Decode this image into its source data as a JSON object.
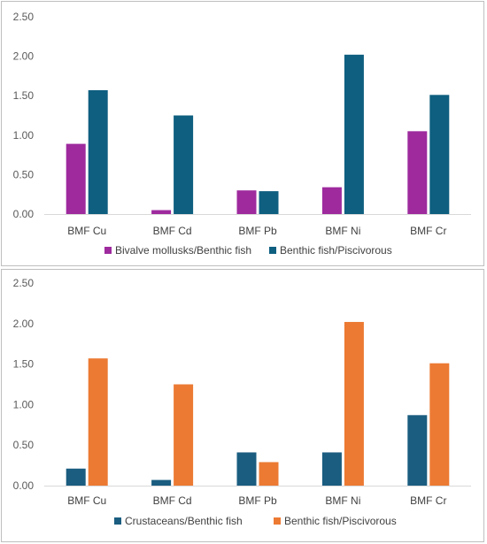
{
  "chart_data": [
    {
      "type": "bar",
      "categories": [
        "BMF Cu",
        "BMF Cd",
        "BMF Pb",
        "BMF Ni",
        "BMF Cr"
      ],
      "series": [
        {
          "name": "Bivalve mollusks/Benthic fish",
          "color": "#9e2a9e",
          "values": [
            0.89,
            0.05,
            0.3,
            0.34,
            1.05
          ]
        },
        {
          "name": "Benthic fish/Piscivorous",
          "color": "#0e5f80",
          "values": [
            1.57,
            1.25,
            0.29,
            2.02,
            1.51
          ]
        }
      ],
      "yticks": [
        "0.00",
        "0.50",
        "1.00",
        "1.50",
        "2.00",
        "2.50"
      ],
      "ylim": [
        0,
        2.5
      ],
      "grid": false,
      "legend": "bottom"
    },
    {
      "type": "bar",
      "categories": [
        "BMF Cu",
        "BMF Cd",
        "BMF Pb",
        "BMF Ni",
        "BMF Cr"
      ],
      "series": [
        {
          "name": "Crustaceans/Benthic fish",
          "color": "#1a5d80",
          "values": [
            0.21,
            0.07,
            0.41,
            0.41,
            0.87
          ]
        },
        {
          "name": "Benthic fish/Piscivorous",
          "color": "#ec7a33",
          "values": [
            1.57,
            1.25,
            0.29,
            2.02,
            1.51
          ]
        }
      ],
      "yticks": [
        "0.00",
        "0.50",
        "1.00",
        "1.50",
        "2.00",
        "2.50"
      ],
      "ylim": [
        0,
        2.5
      ],
      "grid": false,
      "legend": "bottom"
    }
  ]
}
